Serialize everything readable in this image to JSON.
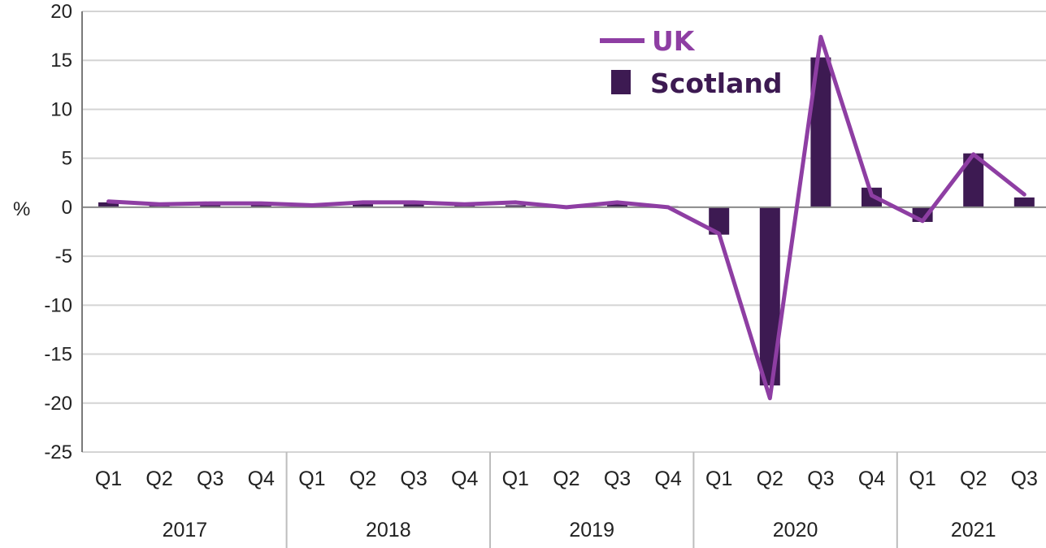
{
  "chart_data": {
    "type": "bar",
    "title": "",
    "ylabel": "%",
    "xlabel": "",
    "ylim": [
      -25,
      20
    ],
    "yticks": [
      20,
      15,
      10,
      5,
      0,
      -5,
      -10,
      -15,
      -20,
      -25
    ],
    "grid": true,
    "legend_position": "top-center",
    "categories": [
      "Q1",
      "Q2",
      "Q3",
      "Q4",
      "Q1",
      "Q2",
      "Q3",
      "Q4",
      "Q1",
      "Q2",
      "Q3",
      "Q4",
      "Q1",
      "Q2",
      "Q3",
      "Q4",
      "Q1",
      "Q2",
      "Q3"
    ],
    "year_groups": [
      {
        "label": "2017",
        "count": 4
      },
      {
        "label": "2018",
        "count": 4
      },
      {
        "label": "2019",
        "count": 4
      },
      {
        "label": "2020",
        "count": 4
      },
      {
        "label": "2021",
        "count": 3
      }
    ],
    "series": [
      {
        "name": "UK",
        "type": "line",
        "color": "#8e3ea3",
        "values": [
          0.6,
          0.3,
          0.4,
          0.4,
          0.2,
          0.5,
          0.5,
          0.3,
          0.5,
          0.0,
          0.5,
          0.0,
          -2.7,
          -19.5,
          17.4,
          1.2,
          -1.4,
          5.4,
          1.3
        ]
      },
      {
        "name": "Scotland",
        "type": "bar",
        "color": "#3d1a52",
        "values": [
          0.5,
          0.2,
          0.3,
          0.3,
          0.4,
          0.4,
          0.3,
          0.2,
          0.2,
          0.0,
          0.3,
          0.1,
          -2.8,
          -18.2,
          15.3,
          2.0,
          -1.5,
          5.5,
          1.0
        ]
      }
    ]
  }
}
